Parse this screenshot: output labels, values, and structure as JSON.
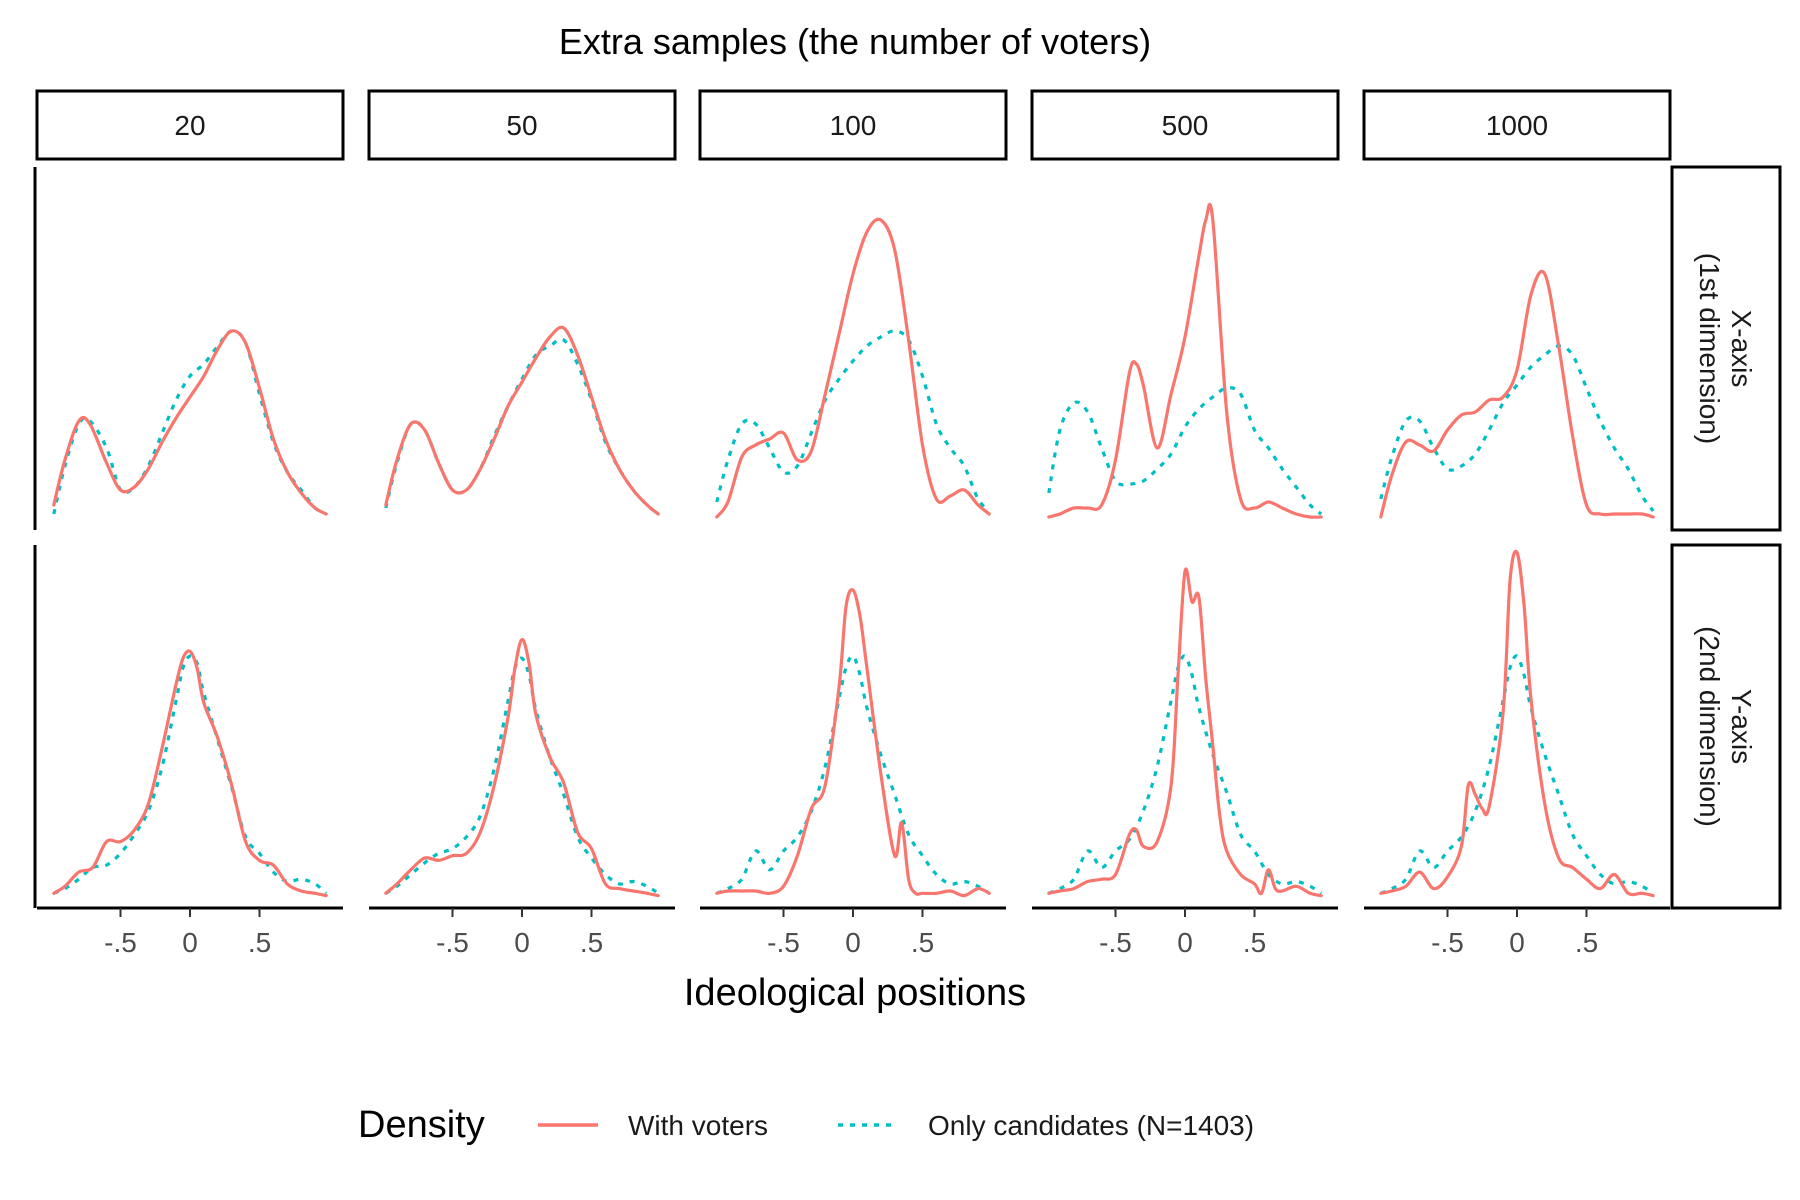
{
  "chart_data": {
    "type": "line",
    "title": "Extra samples (the number of voters)",
    "xlabel": "Ideological positions",
    "ylabel": "",
    "xlim": [
      -1.0,
      1.0
    ],
    "x_ticks": [
      -0.5,
      0,
      0.5
    ],
    "x_tick_labels": [
      "-.5",
      "0",
      ".5"
    ],
    "ylim": [
      0,
      1
    ],
    "grid": false,
    "legend_position": "bottom",
    "legend_title": "Density",
    "legend": [
      {
        "name": "With voters",
        "color": "#F8766D",
        "dash": "solid"
      },
      {
        "name": "Only candidates (N=1403)",
        "color": "#00BFC4",
        "dash": "dotted"
      }
    ],
    "columns": [
      "20",
      "50",
      "100",
      "500",
      "1000"
    ],
    "rows": [
      "X-axis\n(1st dimension)",
      "Y-axis\n(2nd dimension)"
    ],
    "panels": [
      {
        "row": 0,
        "col": 0,
        "with_voters": {
          "x": [
            -0.98,
            -0.9,
            -0.8,
            -0.72,
            -0.6,
            -0.5,
            -0.4,
            -0.3,
            -0.2,
            -0.1,
            0,
            0.1,
            0.2,
            0.3,
            0.4,
            0.5,
            0.6,
            0.7,
            0.8,
            0.9,
            0.98
          ],
          "y": [
            0.05,
            0.2,
            0.33,
            0.32,
            0.19,
            0.1,
            0.11,
            0.17,
            0.26,
            0.34,
            0.41,
            0.48,
            0.57,
            0.63,
            0.59,
            0.44,
            0.27,
            0.16,
            0.09,
            0.04,
            0.02
          ]
        },
        "only_candidates": {
          "x": [
            -0.98,
            -0.9,
            -0.8,
            -0.72,
            -0.6,
            -0.5,
            -0.4,
            -0.3,
            -0.2,
            -0.1,
            0,
            0.1,
            0.2,
            0.3,
            0.4,
            0.5,
            0.6,
            0.7,
            0.8,
            0.9,
            0.98
          ],
          "y": [
            0.02,
            0.18,
            0.32,
            0.33,
            0.24,
            0.1,
            0.11,
            0.18,
            0.29,
            0.4,
            0.48,
            0.52,
            0.58,
            0.63,
            0.59,
            0.42,
            0.26,
            0.16,
            0.1,
            0.04,
            0.02
          ]
        }
      },
      {
        "row": 0,
        "col": 1,
        "with_voters": {
          "x": [
            -0.98,
            -0.9,
            -0.8,
            -0.7,
            -0.6,
            -0.5,
            -0.4,
            -0.3,
            -0.2,
            -0.1,
            0,
            0.1,
            0.2,
            0.3,
            0.4,
            0.5,
            0.6,
            0.7,
            0.8,
            0.9,
            0.98
          ],
          "y": [
            0.05,
            0.2,
            0.32,
            0.3,
            0.19,
            0.1,
            0.1,
            0.17,
            0.27,
            0.38,
            0.46,
            0.54,
            0.61,
            0.64,
            0.55,
            0.41,
            0.27,
            0.17,
            0.1,
            0.05,
            0.02
          ]
        },
        "only_candidates": {
          "x": [
            -0.98,
            -0.9,
            -0.8,
            -0.7,
            -0.6,
            -0.5,
            -0.4,
            -0.3,
            -0.2,
            -0.1,
            0,
            0.1,
            0.2,
            0.3,
            0.4,
            0.5,
            0.6,
            0.7,
            0.8,
            0.9,
            0.98
          ],
          "y": [
            0.04,
            0.19,
            0.32,
            0.3,
            0.19,
            0.1,
            0.1,
            0.17,
            0.28,
            0.38,
            0.47,
            0.55,
            0.58,
            0.6,
            0.52,
            0.4,
            0.26,
            0.17,
            0.1,
            0.05,
            0.02
          ]
        }
      },
      {
        "row": 0,
        "col": 2,
        "with_voters": {
          "x": [
            -0.98,
            -0.9,
            -0.8,
            -0.7,
            -0.6,
            -0.5,
            -0.4,
            -0.3,
            -0.2,
            -0.1,
            0,
            0.1,
            0.2,
            0.3,
            0.4,
            0.5,
            0.6,
            0.7,
            0.8,
            0.9,
            0.98
          ],
          "y": [
            0.01,
            0.06,
            0.21,
            0.25,
            0.27,
            0.29,
            0.2,
            0.23,
            0.42,
            0.62,
            0.82,
            0.96,
            1.0,
            0.9,
            0.6,
            0.25,
            0.07,
            0.08,
            0.1,
            0.05,
            0.02
          ]
        },
        "only_candidates": {
          "x": [
            -0.98,
            -0.9,
            -0.8,
            -0.7,
            -0.6,
            -0.5,
            -0.4,
            -0.3,
            -0.2,
            -0.1,
            0,
            0.1,
            0.2,
            0.3,
            0.4,
            0.5,
            0.6,
            0.7,
            0.8,
            0.9,
            0.98
          ],
          "y": [
            0.06,
            0.2,
            0.32,
            0.32,
            0.24,
            0.16,
            0.18,
            0.29,
            0.4,
            0.47,
            0.53,
            0.58,
            0.61,
            0.63,
            0.6,
            0.48,
            0.32,
            0.24,
            0.18,
            0.07,
            0.03
          ]
        }
      },
      {
        "row": 0,
        "col": 3,
        "with_voters": {
          "x": [
            -0.98,
            -0.9,
            -0.8,
            -0.7,
            -0.6,
            -0.5,
            -0.4,
            -0.35,
            -0.3,
            -0.2,
            -0.1,
            0,
            0.1,
            0.15,
            0.2,
            0.3,
            0.4,
            0.5,
            0.6,
            0.7,
            0.8,
            0.9,
            0.98
          ],
          "y": [
            0.01,
            0.02,
            0.04,
            0.04,
            0.05,
            0.2,
            0.49,
            0.52,
            0.45,
            0.24,
            0.42,
            0.61,
            0.88,
            1.0,
            1.0,
            0.36,
            0.07,
            0.04,
            0.06,
            0.04,
            0.02,
            0.01,
            0.01
          ]
        },
        "only_candidates": {
          "x": [
            -0.98,
            -0.9,
            -0.8,
            -0.7,
            -0.6,
            -0.5,
            -0.4,
            -0.3,
            -0.2,
            -0.1,
            0,
            0.1,
            0.2,
            0.3,
            0.4,
            0.5,
            0.6,
            0.7,
            0.8,
            0.9,
            0.98
          ],
          "y": [
            0.09,
            0.3,
            0.39,
            0.36,
            0.24,
            0.13,
            0.12,
            0.13,
            0.17,
            0.22,
            0.31,
            0.37,
            0.41,
            0.44,
            0.42,
            0.3,
            0.24,
            0.17,
            0.11,
            0.05,
            0.02
          ]
        }
      },
      {
        "row": 0,
        "col": 4,
        "with_voters": {
          "x": [
            -0.98,
            -0.9,
            -0.8,
            -0.7,
            -0.6,
            -0.5,
            -0.4,
            -0.3,
            -0.2,
            -0.1,
            0,
            0.1,
            0.2,
            0.3,
            0.4,
            0.5,
            0.6,
            0.7,
            0.8,
            0.9,
            0.98
          ],
          "y": [
            0.01,
            0.15,
            0.26,
            0.25,
            0.23,
            0.3,
            0.35,
            0.36,
            0.4,
            0.41,
            0.5,
            0.75,
            0.82,
            0.58,
            0.28,
            0.05,
            0.02,
            0.02,
            0.02,
            0.02,
            0.01
          ]
        },
        "only_candidates": {
          "x": [
            -0.98,
            -0.9,
            -0.8,
            -0.7,
            -0.6,
            -0.5,
            -0.4,
            -0.3,
            -0.2,
            -0.1,
            0,
            0.1,
            0.2,
            0.3,
            0.4,
            0.5,
            0.6,
            0.7,
            0.8,
            0.9,
            0.98
          ],
          "y": [
            0.07,
            0.21,
            0.33,
            0.33,
            0.24,
            0.17,
            0.18,
            0.22,
            0.3,
            0.39,
            0.45,
            0.51,
            0.55,
            0.58,
            0.55,
            0.44,
            0.33,
            0.24,
            0.17,
            0.08,
            0.03
          ]
        }
      },
      {
        "row": 1,
        "col": 0,
        "with_voters": {
          "x": [
            -0.98,
            -0.9,
            -0.8,
            -0.7,
            -0.6,
            -0.5,
            -0.4,
            -0.3,
            -0.2,
            -0.1,
            -0.05,
            0,
            0.05,
            0.1,
            0.2,
            0.3,
            0.4,
            0.5,
            0.6,
            0.7,
            0.8,
            0.9,
            0.98
          ],
          "y": [
            0.02,
            0.05,
            0.11,
            0.13,
            0.24,
            0.24,
            0.29,
            0.4,
            0.64,
            0.91,
            1.02,
            1.05,
            0.98,
            0.83,
            0.68,
            0.48,
            0.24,
            0.16,
            0.14,
            0.06,
            0.03,
            0.02,
            0.01
          ]
        },
        "only_candidates": {
          "x": [
            -0.98,
            -0.9,
            -0.8,
            -0.7,
            -0.6,
            -0.5,
            -0.4,
            -0.3,
            -0.2,
            -0.1,
            -0.05,
            0,
            0.05,
            0.1,
            0.2,
            0.3,
            0.4,
            0.5,
            0.6,
            0.7,
            0.8,
            0.9,
            0.98
          ],
          "y": [
            0.02,
            0.04,
            0.08,
            0.13,
            0.14,
            0.19,
            0.27,
            0.37,
            0.56,
            0.84,
            0.98,
            1.03,
            1.0,
            0.87,
            0.67,
            0.47,
            0.26,
            0.19,
            0.11,
            0.07,
            0.08,
            0.06,
            0.02
          ]
        }
      },
      {
        "row": 1,
        "col": 1,
        "with_voters": {
          "x": [
            -0.98,
            -0.9,
            -0.8,
            -0.7,
            -0.6,
            -0.5,
            -0.4,
            -0.3,
            -0.2,
            -0.1,
            -0.05,
            0,
            0.05,
            0.1,
            0.2,
            0.3,
            0.4,
            0.5,
            0.6,
            0.7,
            0.8,
            0.9,
            0.98
          ],
          "y": [
            0.02,
            0.06,
            0.12,
            0.17,
            0.16,
            0.18,
            0.19,
            0.28,
            0.48,
            0.77,
            0.98,
            1.1,
            1.0,
            0.78,
            0.6,
            0.49,
            0.28,
            0.21,
            0.06,
            0.04,
            0.03,
            0.02,
            0.01
          ]
        },
        "only_candidates": {
          "x": [
            -0.98,
            -0.9,
            -0.8,
            -0.7,
            -0.6,
            -0.5,
            -0.4,
            -0.3,
            -0.2,
            -0.1,
            -0.05,
            0,
            0.05,
            0.1,
            0.2,
            0.3,
            0.4,
            0.5,
            0.6,
            0.7,
            0.8,
            0.9,
            0.98
          ],
          "y": [
            0.02,
            0.05,
            0.1,
            0.15,
            0.19,
            0.21,
            0.26,
            0.35,
            0.55,
            0.84,
            0.98,
            1.02,
            0.95,
            0.8,
            0.6,
            0.44,
            0.26,
            0.17,
            0.1,
            0.06,
            0.07,
            0.05,
            0.02
          ]
        }
      },
      {
        "row": 1,
        "col": 2,
        "with_voters": {
          "x": [
            -0.98,
            -0.9,
            -0.8,
            -0.7,
            -0.6,
            -0.5,
            -0.4,
            -0.3,
            -0.2,
            -0.1,
            -0.05,
            0,
            0.05,
            0.1,
            0.2,
            0.3,
            0.35,
            0.4,
            0.45,
            0.5,
            0.6,
            0.7,
            0.8,
            0.9,
            0.98
          ],
          "y": [
            0.02,
            0.03,
            0.03,
            0.03,
            0.02,
            0.05,
            0.18,
            0.38,
            0.48,
            0.9,
            1.24,
            1.31,
            1.2,
            0.98,
            0.53,
            0.18,
            0.32,
            0.08,
            0.02,
            0.02,
            0.02,
            0.03,
            0.01,
            0.04,
            0.02
          ]
        },
        "only_candidates": {
          "x": [
            -0.98,
            -0.9,
            -0.8,
            -0.7,
            -0.6,
            -0.5,
            -0.4,
            -0.3,
            -0.2,
            -0.1,
            -0.05,
            0,
            0.05,
            0.1,
            0.2,
            0.3,
            0.4,
            0.5,
            0.6,
            0.7,
            0.8,
            0.9,
            0.98
          ],
          "y": [
            0.02,
            0.04,
            0.08,
            0.2,
            0.12,
            0.2,
            0.26,
            0.37,
            0.56,
            0.85,
            0.98,
            1.03,
            0.95,
            0.81,
            0.61,
            0.44,
            0.27,
            0.18,
            0.1,
            0.06,
            0.07,
            0.05,
            0.02
          ]
        }
      },
      {
        "row": 1,
        "col": 3,
        "with_voters": {
          "x": [
            -0.98,
            -0.9,
            -0.8,
            -0.7,
            -0.6,
            -0.5,
            -0.4,
            -0.35,
            -0.3,
            -0.2,
            -0.1,
            -0.05,
            0,
            0.05,
            0.1,
            0.15,
            0.2,
            0.25,
            0.3,
            0.4,
            0.5,
            0.55,
            0.6,
            0.65,
            0.7,
            0.8,
            0.9,
            0.98
          ],
          "y": [
            0.02,
            0.03,
            0.04,
            0.07,
            0.08,
            0.1,
            0.27,
            0.29,
            0.22,
            0.24,
            0.48,
            0.95,
            1.39,
            1.26,
            1.28,
            0.93,
            0.65,
            0.35,
            0.2,
            0.1,
            0.06,
            0.02,
            0.12,
            0.04,
            0.03,
            0.05,
            0.02,
            0.01
          ]
        },
        "only_candidates": {
          "x": [
            -0.98,
            -0.9,
            -0.8,
            -0.7,
            -0.6,
            -0.5,
            -0.4,
            -0.3,
            -0.2,
            -0.1,
            -0.05,
            0,
            0.05,
            0.1,
            0.2,
            0.3,
            0.4,
            0.5,
            0.6,
            0.7,
            0.8,
            0.9,
            0.98
          ],
          "y": [
            0.02,
            0.04,
            0.08,
            0.2,
            0.13,
            0.2,
            0.25,
            0.37,
            0.56,
            0.84,
            0.98,
            1.03,
            0.95,
            0.81,
            0.61,
            0.45,
            0.27,
            0.2,
            0.1,
            0.06,
            0.07,
            0.05,
            0.02
          ]
        }
      },
      {
        "row": 1,
        "col": 4,
        "with_voters": {
          "x": [
            -0.98,
            -0.9,
            -0.8,
            -0.7,
            -0.6,
            -0.5,
            -0.4,
            -0.35,
            -0.3,
            -0.25,
            -0.2,
            -0.1,
            -0.05,
            0,
            0.05,
            0.1,
            0.2,
            0.3,
            0.4,
            0.5,
            0.6,
            0.7,
            0.8,
            0.9,
            0.98
          ],
          "y": [
            0.02,
            0.03,
            0.05,
            0.11,
            0.04,
            0.09,
            0.22,
            0.48,
            0.44,
            0.38,
            0.39,
            0.79,
            1.35,
            1.47,
            1.25,
            0.85,
            0.4,
            0.17,
            0.13,
            0.08,
            0.04,
            0.1,
            0.02,
            0.02,
            0.01
          ]
        },
        "only_candidates": {
          "x": [
            -0.98,
            -0.9,
            -0.8,
            -0.7,
            -0.6,
            -0.5,
            -0.4,
            -0.3,
            -0.2,
            -0.1,
            -0.05,
            0,
            0.05,
            0.1,
            0.2,
            0.3,
            0.4,
            0.5,
            0.6,
            0.7,
            0.8,
            0.9,
            0.98
          ],
          "y": [
            0.02,
            0.04,
            0.08,
            0.2,
            0.13,
            0.2,
            0.26,
            0.37,
            0.56,
            0.84,
            0.98,
            1.03,
            0.95,
            0.81,
            0.61,
            0.44,
            0.27,
            0.18,
            0.1,
            0.06,
            0.07,
            0.05,
            0.02
          ]
        }
      }
    ]
  }
}
